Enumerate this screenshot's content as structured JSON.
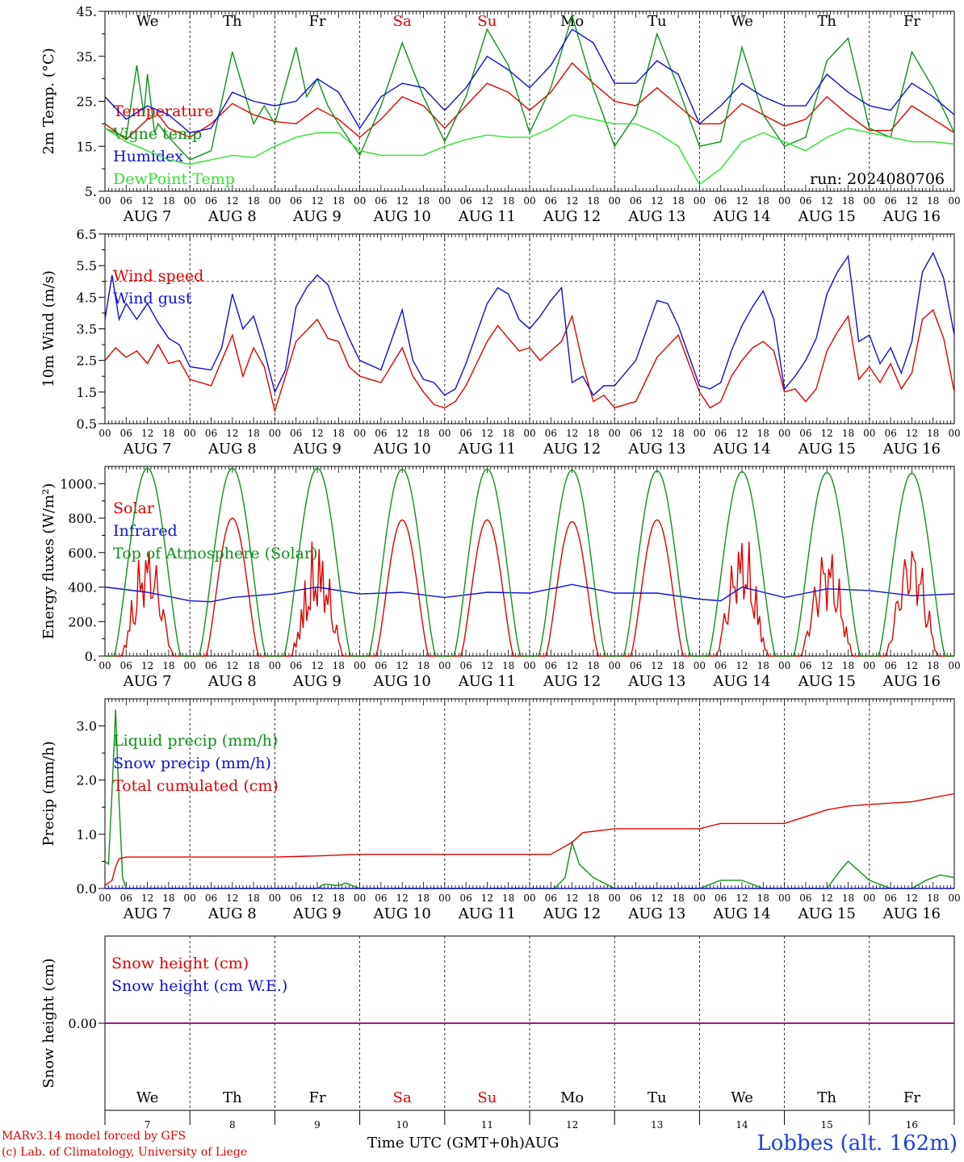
{
  "run_label": "run: 2024080706",
  "footer": {
    "model_line": "MARv3.14 model forced by GFS",
    "credit_line": "(c) Lab. of Climatology, University of Liege",
    "xaxis_title": "Time UTC (GMT+0h)",
    "month_label": "AUG",
    "station": "Lobbes (alt. 162m)"
  },
  "colors": {
    "red": "#e00000",
    "blue": "#1010d8",
    "green": "#10901a",
    "lightgreen": "#30e030",
    "purple": "#800080",
    "weekend": "#e00000"
  },
  "timeline": {
    "days": 10,
    "hour_ticks": [
      "00",
      "06",
      "12",
      "18"
    ],
    "end_tick": "00",
    "date_labels": [
      "AUG 7",
      "AUG 8",
      "AUG 9",
      "AUG 10",
      "AUG 11",
      "AUG 12",
      "AUG 13",
      "AUG 14",
      "AUG 15",
      "AUG 16"
    ],
    "weekdays": [
      {
        "label": "We",
        "weekend": false
      },
      {
        "label": "Th",
        "weekend": false
      },
      {
        "label": "Fr",
        "weekend": false
      },
      {
        "label": "Sa",
        "weekend": true
      },
      {
        "label": "Su",
        "weekend": true
      },
      {
        "label": "Mo",
        "weekend": false
      },
      {
        "label": "Tu",
        "weekend": false
      },
      {
        "label": "We",
        "weekend": false
      },
      {
        "label": "Th",
        "weekend": false
      },
      {
        "label": "Fr",
        "weekend": false
      }
    ],
    "day_numbers": [
      "7",
      "8",
      "9",
      "10",
      "11",
      "12",
      "13",
      "14",
      "15",
      "16"
    ]
  },
  "chart_data": [
    {
      "id": "temperature",
      "type": "line",
      "ylabel": "2m Temp. (°C)",
      "ylim": [
        5,
        45
      ],
      "ytick_values": [
        5,
        15,
        25,
        35,
        45
      ],
      "ytick_labels": [
        "5.",
        "15.",
        "25.",
        "35.",
        "45."
      ],
      "x_unit": "hours from AUG 7 00 UTC",
      "series": [
        {
          "name": "Temperature",
          "color": "#e00000",
          "x": [
            0,
            6,
            12,
            15,
            18,
            24,
            30,
            36,
            42,
            48,
            54,
            60,
            66,
            72,
            78,
            84,
            90,
            96,
            102,
            108,
            114,
            120,
            126,
            132,
            138,
            144,
            150,
            156,
            162,
            168,
            174,
            180,
            186,
            192,
            198,
            204,
            210,
            216,
            222,
            228,
            234,
            240
          ],
          "y": [
            20,
            16.5,
            21,
            22,
            19,
            17,
            20,
            24.5,
            22,
            20.5,
            20,
            23.5,
            21,
            17,
            21,
            26,
            24,
            19,
            24,
            29,
            27,
            23,
            27,
            33.5,
            29,
            25,
            24,
            28,
            24,
            20,
            20,
            24.5,
            22,
            19.5,
            21,
            26,
            22,
            18.5,
            18.5,
            24,
            21,
            18
          ]
        },
        {
          "name": "Vigne temp",
          "color": "#10901a",
          "x": [
            0,
            6,
            9,
            11,
            12,
            14,
            15,
            18,
            24,
            30,
            36,
            42,
            45,
            48,
            54,
            57,
            60,
            63,
            66,
            72,
            78,
            84,
            90,
            96,
            102,
            108,
            114,
            120,
            126,
            132,
            138,
            144,
            150,
            156,
            162,
            168,
            174,
            180,
            186,
            192,
            198,
            204,
            210,
            216,
            222,
            228,
            234,
            240
          ],
          "y": [
            19,
            17,
            33,
            22,
            31,
            18,
            20,
            17,
            12,
            14,
            36,
            20,
            24,
            20,
            37,
            26,
            30,
            24,
            20,
            13,
            24,
            38,
            26,
            16,
            26,
            41,
            33,
            18,
            28,
            44,
            28,
            15,
            22,
            40,
            28,
            15,
            16,
            37,
            22,
            15,
            17,
            34,
            39,
            19,
            17,
            36,
            28,
            18
          ]
        },
        {
          "name": "Humidex",
          "color": "#1010d8",
          "x": [
            0,
            6,
            12,
            18,
            24,
            30,
            36,
            42,
            48,
            54,
            60,
            66,
            72,
            78,
            84,
            90,
            96,
            102,
            108,
            114,
            120,
            126,
            132,
            138,
            144,
            150,
            156,
            162,
            168,
            174,
            180,
            186,
            192,
            198,
            204,
            210,
            216,
            222,
            228,
            234,
            240
          ],
          "y": [
            26,
            21,
            24,
            22,
            18,
            19,
            27,
            25,
            24,
            25,
            30,
            27,
            19,
            26,
            29,
            28,
            23,
            28,
            35,
            32,
            28,
            33,
            41,
            38,
            29,
            29,
            34,
            31,
            20,
            24,
            29,
            26,
            24,
            24,
            31,
            27,
            24,
            23,
            29,
            26,
            22
          ]
        },
        {
          "name": "DewPoint Temp",
          "color": "#30e030",
          "x": [
            0,
            6,
            12,
            18,
            24,
            30,
            36,
            42,
            48,
            54,
            60,
            66,
            72,
            78,
            84,
            90,
            96,
            102,
            108,
            114,
            120,
            126,
            132,
            138,
            144,
            150,
            156,
            162,
            168,
            174,
            180,
            186,
            192,
            198,
            204,
            210,
            216,
            222,
            228,
            234,
            240
          ],
          "y": [
            19,
            16,
            14,
            12,
            11,
            12,
            13,
            12.5,
            15,
            17,
            18,
            18,
            14,
            13,
            13,
            13,
            15,
            16.5,
            17.5,
            17,
            17,
            19,
            22,
            21,
            20,
            20,
            18,
            15,
            6.5,
            10,
            16,
            18,
            16,
            14,
            17,
            19,
            18,
            17,
            16,
            16,
            15.5
          ]
        }
      ]
    },
    {
      "id": "wind",
      "type": "line",
      "ylabel": "10m Wind (m/s)",
      "ylim": [
        0.5,
        6.5
      ],
      "ytick_values": [
        0.5,
        1.5,
        2.5,
        3.5,
        4.5,
        5.5,
        6.5
      ],
      "ytick_labels": [
        "0.5",
        "1.5",
        "2.5",
        "3.5",
        "4.5",
        "5.5",
        "6.5"
      ],
      "reference_line": 5,
      "x_unit": "hours from AUG 7 00 UTC",
      "series": [
        {
          "name": "Wind speed",
          "color": "#e00000",
          "x": [
            0,
            3,
            6,
            9,
            12,
            15,
            18,
            21,
            24,
            30,
            36,
            39,
            42,
            45,
            48,
            51,
            54,
            60,
            63,
            66,
            69,
            72,
            78,
            84,
            87,
            90,
            93,
            96,
            99,
            102,
            108,
            111,
            114,
            117,
            120,
            123,
            126,
            129,
            132,
            135,
            138,
            141,
            144,
            150,
            156,
            162,
            168,
            171,
            174,
            177,
            180,
            183,
            186,
            189,
            192,
            195,
            198,
            201,
            204,
            207,
            210,
            213,
            216,
            219,
            222,
            225,
            228,
            231,
            234,
            237,
            240
          ],
          "y": [
            2.5,
            2.9,
            2.6,
            2.8,
            2.4,
            3.0,
            2.4,
            2.5,
            1.9,
            1.7,
            3.3,
            2.0,
            2.9,
            2.3,
            0.9,
            2.0,
            3.1,
            3.8,
            3.2,
            3.1,
            2.3,
            2.0,
            1.8,
            2.9,
            2.0,
            1.5,
            1.1,
            1.0,
            1.2,
            1.7,
            3.1,
            3.6,
            3.2,
            2.8,
            2.9,
            2.5,
            2.8,
            3.1,
            3.9,
            2.4,
            1.2,
            1.4,
            1.0,
            1.2,
            2.6,
            3.3,
            1.5,
            1.0,
            1.2,
            2.0,
            2.5,
            2.9,
            3.1,
            2.8,
            1.5,
            1.6,
            1.2,
            1.6,
            2.8,
            3.4,
            3.9,
            1.9,
            2.3,
            1.8,
            2.4,
            1.6,
            2.1,
            3.8,
            4.1,
            3.2,
            1.5
          ]
        },
        {
          "name": "Wind gust",
          "color": "#1010d8",
          "x": [
            0,
            2,
            4,
            6,
            9,
            12,
            15,
            18,
            21,
            24,
            30,
            33,
            36,
            39,
            42,
            45,
            48,
            51,
            54,
            57,
            60,
            63,
            66,
            69,
            72,
            78,
            84,
            87,
            90,
            93,
            96,
            99,
            102,
            108,
            111,
            114,
            117,
            120,
            123,
            126,
            129,
            132,
            135,
            138,
            141,
            144,
            150,
            156,
            159,
            162,
            168,
            171,
            174,
            177,
            180,
            183,
            186,
            189,
            192,
            195,
            198,
            201,
            204,
            207,
            210,
            213,
            216,
            219,
            222,
            225,
            228,
            231,
            234,
            237,
            240
          ],
          "y": [
            3.8,
            5.2,
            3.8,
            4.3,
            3.8,
            4.3,
            3.7,
            3.2,
            3.0,
            2.3,
            2.2,
            2.9,
            4.6,
            3.5,
            3.9,
            2.8,
            1.5,
            2.2,
            4.2,
            4.8,
            5.2,
            4.9,
            4.0,
            3.2,
            2.5,
            2.2,
            4.1,
            2.5,
            1.9,
            1.8,
            1.4,
            1.6,
            2.4,
            4.3,
            4.8,
            4.6,
            3.8,
            3.5,
            3.9,
            4.4,
            4.8,
            1.8,
            2.0,
            1.4,
            1.7,
            1.7,
            2.5,
            4.4,
            4.3,
            3.6,
            1.7,
            1.6,
            1.8,
            2.8,
            3.6,
            4.2,
            4.7,
            3.8,
            1.6,
            2.0,
            2.5,
            3.2,
            4.6,
            5.3,
            5.8,
            3.1,
            3.3,
            2.4,
            2.9,
            2.1,
            3.1,
            5.3,
            5.9,
            5.1,
            3.3
          ]
        }
      ]
    },
    {
      "id": "energy",
      "type": "line",
      "ylabel": "Energy fluxes (W/m²)",
      "ylim": [
        0,
        1100
      ],
      "ytick_values": [
        0,
        200,
        400,
        600,
        800,
        1000
      ],
      "ytick_labels": [
        "0.",
        "200.",
        "400.",
        "600.",
        "800.",
        "1000."
      ],
      "x_unit": "hours from AUG 7 00 UTC",
      "series": [
        {
          "name": "Solar",
          "color": "#e00000",
          "daily_peaks": [
            730,
            800,
            720,
            790,
            790,
            780,
            790,
            780,
            720,
            770
          ],
          "rise_hour": 4.5,
          "set_hour": 19.5,
          "jagged_days": [
            0,
            2,
            7,
            8,
            9
          ]
        },
        {
          "name": "Infrared",
          "color": "#1010d8",
          "x": [
            0,
            12,
            24,
            30,
            36,
            48,
            60,
            72,
            84,
            96,
            108,
            120,
            132,
            144,
            156,
            168,
            174,
            180,
            192,
            204,
            216,
            228,
            240
          ],
          "y": [
            400,
            370,
            320,
            315,
            340,
            360,
            400,
            360,
            370,
            340,
            370,
            365,
            415,
            365,
            365,
            330,
            320,
            400,
            340,
            390,
            380,
            350,
            360
          ]
        },
        {
          "name": "Top of Atmosphere (Solar)",
          "color": "#10901a",
          "daily_peaks": [
            1090,
            1090,
            1090,
            1085,
            1085,
            1080,
            1075,
            1070,
            1065,
            1060
          ],
          "rise_hour": 2.5,
          "set_hour": 21.5
        }
      ]
    },
    {
      "id": "precip",
      "type": "line",
      "ylabel": "Precip (mm/h)",
      "ylim": [
        0,
        3.5
      ],
      "ytick_values": [
        0,
        1,
        2,
        3
      ],
      "ytick_labels": [
        "0.0",
        "1.0",
        "2.0",
        "3.0"
      ],
      "x_unit": "hours from AUG 7 00 UTC",
      "series": [
        {
          "name": "Liquid precip (mm/h)",
          "color": "#10901a",
          "x": [
            0,
            1,
            2,
            3,
            4,
            5,
            6,
            8,
            60,
            62,
            66,
            68,
            72,
            127,
            130,
            132,
            134,
            138,
            141,
            144,
            150,
            168,
            174,
            180,
            186,
            204,
            208,
            210,
            216,
            222,
            228,
            232,
            236,
            240
          ],
          "y": [
            0.5,
            0.45,
            1.8,
            3.3,
            1.6,
            0.2,
            0,
            0,
            0,
            0.08,
            0.05,
            0.1,
            0,
            0,
            0.2,
            0.85,
            0.45,
            0.2,
            0.1,
            0,
            0,
            0,
            0.15,
            0.15,
            0,
            0,
            0.35,
            0.5,
            0.15,
            0,
            0,
            0.15,
            0.25,
            0.2
          ]
        },
        {
          "name": "Snow precip (mm/h)",
          "color": "#1010d8",
          "x": [
            0,
            240
          ],
          "y": [
            0,
            0
          ]
        },
        {
          "name": "Total cumulated (cm)",
          "color": "#e00000",
          "x": [
            0,
            2,
            3,
            4,
            6,
            48,
            60,
            72,
            126,
            132,
            135,
            144,
            168,
            174,
            192,
            204,
            210,
            216,
            228,
            240
          ],
          "y": [
            0.05,
            0.15,
            0.4,
            0.55,
            0.58,
            0.58,
            0.6,
            0.63,
            0.63,
            0.85,
            1.03,
            1.1,
            1.1,
            1.2,
            1.2,
            1.45,
            1.52,
            1.55,
            1.6,
            1.75
          ]
        }
      ]
    },
    {
      "id": "snow",
      "type": "line",
      "ylabel": "Snow height (cm)",
      "ylim": [
        -1,
        1
      ],
      "ytick_values": [
        0
      ],
      "ytick_labels": [
        "0.00"
      ],
      "x_unit": "hours from AUG 7 00 UTC",
      "series": [
        {
          "name": "Snow height (cm)",
          "color": "#e00000",
          "x": [
            0,
            240
          ],
          "y": [
            0,
            0
          ]
        },
        {
          "name": "Snow height (cm W.E.)",
          "color": "#1010d8",
          "x": [
            0,
            240
          ],
          "y": [
            0,
            0
          ]
        }
      ]
    }
  ]
}
